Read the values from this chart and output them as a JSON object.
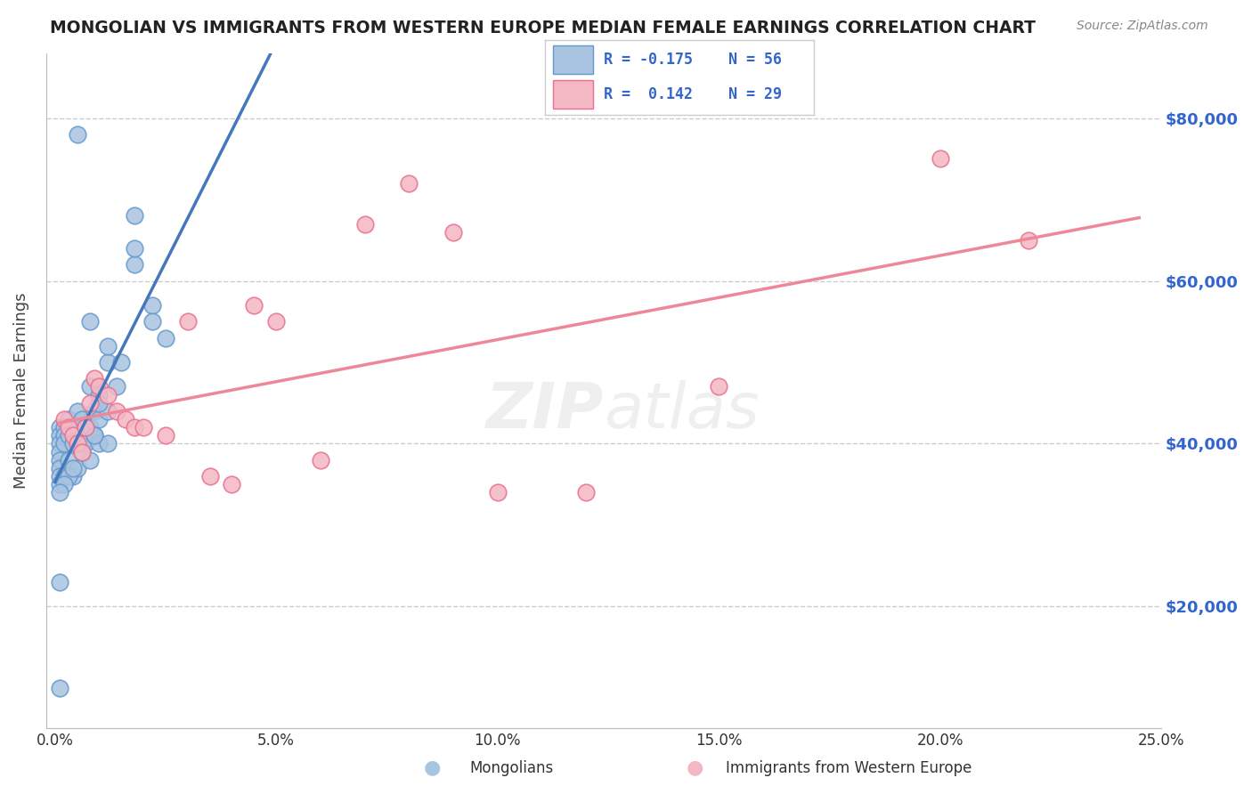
{
  "title": "MONGOLIAN VS IMMIGRANTS FROM WESTERN EUROPE MEDIAN FEMALE EARNINGS CORRELATION CHART",
  "source": "Source: ZipAtlas.com",
  "ylabel": "Median Female Earnings",
  "y_ticks": [
    20000,
    40000,
    60000,
    80000
  ],
  "y_tick_labels": [
    "$20,000",
    "$40,000",
    "$60,000",
    "$80,000"
  ],
  "xlim": [
    -0.002,
    0.25
  ],
  "ylim": [
    5000,
    88000
  ],
  "mongolian_color": "#a8c4e0",
  "immigrant_color": "#f4b8c4",
  "mongolian_edge": "#6699cc",
  "immigrant_edge": "#e87090",
  "line_blue": "#4477bb",
  "line_pink": "#ee8899",
  "line_dash": "#aaaaaa",
  "mongolian_x": [
    0.001,
    0.001,
    0.001,
    0.001,
    0.001,
    0.001,
    0.001,
    0.001,
    0.002,
    0.002,
    0.002,
    0.002,
    0.003,
    0.003,
    0.003,
    0.004,
    0.004,
    0.005,
    0.005,
    0.005,
    0.006,
    0.006,
    0.007,
    0.007,
    0.008,
    0.008,
    0.008,
    0.009,
    0.009,
    0.01,
    0.01,
    0.01,
    0.012,
    0.012,
    0.012,
    0.014,
    0.015,
    0.018,
    0.018,
    0.022,
    0.025,
    0.005,
    0.018,
    0.022,
    0.012,
    0.01,
    0.008,
    0.003,
    0.009,
    0.006,
    0.004,
    0.002,
    0.001,
    0.001,
    0.001
  ],
  "mongolian_y": [
    42000,
    41000,
    40000,
    39000,
    38000,
    37000,
    36000,
    35000,
    42000,
    41000,
    40000,
    36000,
    43000,
    41000,
    38000,
    40000,
    36000,
    44000,
    42000,
    37000,
    43000,
    40000,
    42000,
    40000,
    47000,
    42000,
    38000,
    44000,
    41000,
    46000,
    43000,
    40000,
    50000,
    44000,
    40000,
    47000,
    50000,
    68000,
    62000,
    57000,
    53000,
    78000,
    64000,
    55000,
    52000,
    45000,
    55000,
    36000,
    41000,
    39000,
    37000,
    35000,
    34000,
    10000,
    23000
  ],
  "immigrant_x": [
    0.002,
    0.003,
    0.004,
    0.005,
    0.006,
    0.007,
    0.008,
    0.009,
    0.01,
    0.012,
    0.014,
    0.016,
    0.018,
    0.02,
    0.025,
    0.03,
    0.035,
    0.04,
    0.045,
    0.05,
    0.06,
    0.07,
    0.08,
    0.09,
    0.1,
    0.12,
    0.15,
    0.2,
    0.22
  ],
  "immigrant_y": [
    43000,
    42000,
    41000,
    40000,
    39000,
    42000,
    45000,
    48000,
    47000,
    46000,
    44000,
    43000,
    42000,
    42000,
    41000,
    55000,
    36000,
    35000,
    57000,
    55000,
    38000,
    67000,
    72000,
    66000,
    34000,
    34000,
    47000,
    75000,
    65000
  ],
  "background_color": "#ffffff",
  "grid_color": "#cccccc",
  "x_ticks": [
    0.0,
    0.05,
    0.1,
    0.15,
    0.2,
    0.25
  ],
  "x_tick_labels": [
    "0.0%",
    "5.0%",
    "10.0%",
    "15.0%",
    "20.0%",
    "25.0%"
  ]
}
